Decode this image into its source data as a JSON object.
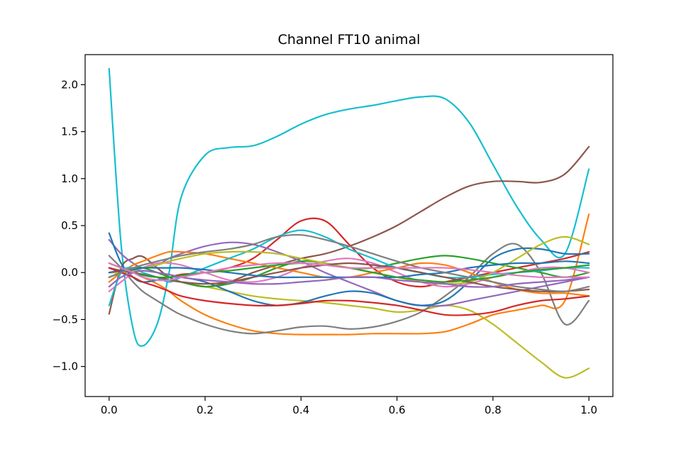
{
  "chart_data": {
    "type": "line",
    "title": "Channel FT10 animal",
    "xlabel": "",
    "ylabel": "",
    "xlim": [
      -0.05,
      1.05
    ],
    "ylim": [
      -1.32,
      2.32
    ],
    "xticks": [
      0.0,
      0.2,
      0.4,
      0.6,
      0.8,
      1.0
    ],
    "xtick_labels": [
      "0.0",
      "0.2",
      "0.4",
      "0.6",
      "0.8",
      "1.0"
    ],
    "yticks": [
      -1.0,
      -0.5,
      0.0,
      0.5,
      1.0,
      1.5,
      2.0
    ],
    "ytick_labels": [
      "−1.0",
      "−0.5",
      "0.0",
      "0.5",
      "1.0",
      "1.5",
      "2.0"
    ],
    "grid": false,
    "legend": "none",
    "x": [
      0.0,
      0.025,
      0.05,
      0.07,
      0.1,
      0.125,
      0.15,
      0.2,
      0.25,
      0.3,
      0.35,
      0.4,
      0.45,
      0.5,
      0.55,
      0.6,
      0.65,
      0.7,
      0.75,
      0.8,
      0.85,
      0.9,
      0.95,
      1.0
    ],
    "series": [
      {
        "color": "#17becf",
        "values": [
          2.17,
          0.3,
          -0.6,
          -0.78,
          -0.55,
          0.0,
          0.8,
          1.25,
          1.33,
          1.35,
          1.45,
          1.58,
          1.68,
          1.74,
          1.78,
          1.83,
          1.87,
          1.85,
          1.6,
          1.15,
          0.7,
          0.35,
          0.2,
          1.1
        ]
      },
      {
        "color": "#8c564b",
        "values": [
          -0.44,
          0.05,
          0.15,
          0.17,
          0.05,
          -0.05,
          -0.1,
          -0.15,
          -0.1,
          0.0,
          0.08,
          0.15,
          0.2,
          0.28,
          0.38,
          0.5,
          0.65,
          0.8,
          0.92,
          0.97,
          0.97,
          0.96,
          1.05,
          1.34
        ]
      },
      {
        "color": "#ff7f0e",
        "values": [
          0.1,
          0.05,
          0.0,
          -0.05,
          -0.12,
          -0.2,
          -0.3,
          -0.45,
          -0.55,
          -0.62,
          -0.65,
          -0.66,
          -0.66,
          -0.66,
          -0.65,
          -0.65,
          -0.65,
          -0.63,
          -0.55,
          -0.45,
          -0.4,
          -0.35,
          -0.3,
          0.62
        ]
      },
      {
        "color": "#bcbd22",
        "values": [
          0.05,
          0.02,
          0.0,
          -0.02,
          -0.05,
          -0.08,
          -0.1,
          -0.15,
          -0.2,
          -0.25,
          -0.28,
          -0.3,
          -0.32,
          -0.35,
          -0.38,
          -0.42,
          -0.4,
          -0.35,
          -0.4,
          -0.55,
          -0.75,
          -0.95,
          -1.12,
          -1.02
        ]
      },
      {
        "color": "#d62728",
        "values": [
          0.0,
          0.02,
          0.0,
          -0.02,
          -0.05,
          -0.05,
          -0.02,
          0.0,
          0.05,
          0.15,
          0.35,
          0.55,
          0.55,
          0.3,
          0.05,
          -0.1,
          -0.15,
          -0.1,
          -0.05,
          0.0,
          0.05,
          0.1,
          0.15,
          0.22
        ]
      },
      {
        "color": "#7f7f7f",
        "values": [
          0.18,
          0.05,
          -0.1,
          -0.2,
          -0.3,
          -0.38,
          -0.45,
          -0.55,
          -0.62,
          -0.65,
          -0.62,
          -0.58,
          -0.57,
          -0.6,
          -0.58,
          -0.52,
          -0.42,
          -0.25,
          -0.05,
          0.2,
          0.3,
          0.0,
          -0.55,
          -0.3
        ]
      },
      {
        "color": "#9467bd",
        "values": [
          0.35,
          0.2,
          0.1,
          0.05,
          0.08,
          0.15,
          0.2,
          0.28,
          0.32,
          0.3,
          0.22,
          0.12,
          0.0,
          -0.1,
          -0.2,
          -0.3,
          -0.35,
          -0.35,
          -0.3,
          -0.25,
          -0.2,
          -0.15,
          -0.1,
          -0.05
        ]
      },
      {
        "color": "#1f77b4",
        "values": [
          0.42,
          0.1,
          -0.05,
          -0.1,
          -0.08,
          -0.05,
          -0.05,
          -0.1,
          -0.2,
          -0.3,
          -0.35,
          -0.32,
          -0.25,
          -0.2,
          -0.22,
          -0.3,
          -0.35,
          -0.3,
          -0.1,
          0.15,
          0.25,
          0.25,
          0.2,
          0.2
        ]
      },
      {
        "color": "#2ca02c",
        "values": [
          -0.05,
          0.0,
          0.05,
          0.05,
          0.0,
          -0.05,
          -0.1,
          -0.15,
          -0.12,
          -0.05,
          0.05,
          0.12,
          0.1,
          0.05,
          0.05,
          0.1,
          0.15,
          0.18,
          0.15,
          0.1,
          0.05,
          0.0,
          -0.05,
          0.0
        ]
      },
      {
        "color": "#e377c2",
        "values": [
          -0.2,
          -0.1,
          0.0,
          0.05,
          0.1,
          0.1,
          0.08,
          0.0,
          -0.08,
          -0.1,
          -0.05,
          0.05,
          0.12,
          0.15,
          0.1,
          0.0,
          -0.1,
          -0.15,
          -0.12,
          -0.05,
          0.0,
          0.05,
          0.05,
          0.0
        ]
      },
      {
        "color": "#ff7f0e",
        "values": [
          -0.1,
          0.0,
          0.08,
          0.12,
          0.18,
          0.22,
          0.22,
          0.2,
          0.15,
          0.1,
          0.05,
          0.0,
          -0.05,
          -0.05,
          0.0,
          0.05,
          0.1,
          0.08,
          0.0,
          -0.1,
          -0.18,
          -0.22,
          -0.22,
          -0.25
        ]
      },
      {
        "color": "#17becf",
        "values": [
          -0.35,
          0.0,
          0.05,
          0.0,
          -0.05,
          -0.1,
          -0.05,
          0.05,
          0.15,
          0.25,
          0.38,
          0.45,
          0.38,
          0.25,
          0.15,
          0.05,
          0.0,
          -0.05,
          -0.05,
          -0.02,
          0.0,
          0.02,
          0.05,
          0.05
        ]
      },
      {
        "color": "#bcbd22",
        "values": [
          0.0,
          0.0,
          0.02,
          0.05,
          0.08,
          0.12,
          0.15,
          0.2,
          0.22,
          0.22,
          0.2,
          0.15,
          0.1,
          0.05,
          0.0,
          -0.05,
          -0.1,
          -0.12,
          -0.1,
          0.0,
          0.15,
          0.3,
          0.38,
          0.3
        ]
      },
      {
        "color": "#8c564b",
        "values": [
          0.05,
          0.02,
          0.0,
          -0.02,
          -0.05,
          -0.08,
          -0.1,
          -0.12,
          -0.1,
          -0.05,
          0.0,
          0.05,
          0.08,
          0.1,
          0.08,
          0.05,
          0.0,
          -0.05,
          -0.1,
          -0.15,
          -0.18,
          -0.2,
          -0.2,
          -0.18
        ]
      },
      {
        "color": "#1f77b4",
        "values": [
          0.0,
          0.02,
          0.03,
          0.05,
          0.05,
          0.05,
          0.05,
          0.03,
          0.0,
          -0.03,
          -0.05,
          -0.05,
          -0.05,
          -0.05,
          -0.05,
          -0.05,
          -0.02,
          0.0,
          0.05,
          0.08,
          0.1,
          0.1,
          0.12,
          0.1
        ]
      },
      {
        "color": "#d62728",
        "values": [
          0.05,
          0.0,
          -0.05,
          -0.1,
          -0.15,
          -0.2,
          -0.25,
          -0.3,
          -0.33,
          -0.35,
          -0.35,
          -0.33,
          -0.3,
          -0.3,
          -0.32,
          -0.35,
          -0.4,
          -0.45,
          -0.45,
          -0.42,
          -0.35,
          -0.3,
          -0.28,
          -0.25
        ]
      },
      {
        "color": "#7f7f7f",
        "values": [
          -0.05,
          0.0,
          0.05,
          0.08,
          0.12,
          0.15,
          0.18,
          0.22,
          0.25,
          0.3,
          0.38,
          0.4,
          0.35,
          0.28,
          0.2,
          0.12,
          0.05,
          0.0,
          -0.05,
          -0.1,
          -0.15,
          -0.18,
          -0.2,
          -0.15
        ]
      },
      {
        "color": "#2ca02c",
        "values": [
          0.1,
          0.05,
          0.0,
          -0.03,
          -0.05,
          -0.05,
          -0.03,
          0.0,
          0.02,
          0.05,
          0.08,
          0.1,
          0.08,
          0.05,
          0.0,
          -0.05,
          -0.08,
          -0.1,
          -0.08,
          -0.05,
          0.0,
          0.03,
          0.05,
          0.08
        ]
      },
      {
        "color": "#9467bd",
        "values": [
          -0.15,
          -0.05,
          0.0,
          0.02,
          0.0,
          -0.02,
          -0.05,
          -0.08,
          -0.1,
          -0.12,
          -0.12,
          -0.1,
          -0.08,
          -0.05,
          -0.05,
          -0.08,
          -0.1,
          -0.12,
          -0.15,
          -0.15,
          -0.12,
          -0.1,
          -0.08,
          -0.05
        ]
      },
      {
        "color": "#e377c2",
        "values": [
          0.1,
          0.05,
          0.0,
          -0.05,
          -0.08,
          -0.08,
          -0.05,
          0.0,
          0.05,
          0.08,
          0.1,
          0.1,
          0.08,
          0.05,
          0.05,
          0.05,
          0.05,
          0.05,
          0.03,
          0.0,
          -0.03,
          -0.05,
          -0.05,
          -0.05
        ]
      }
    ]
  }
}
